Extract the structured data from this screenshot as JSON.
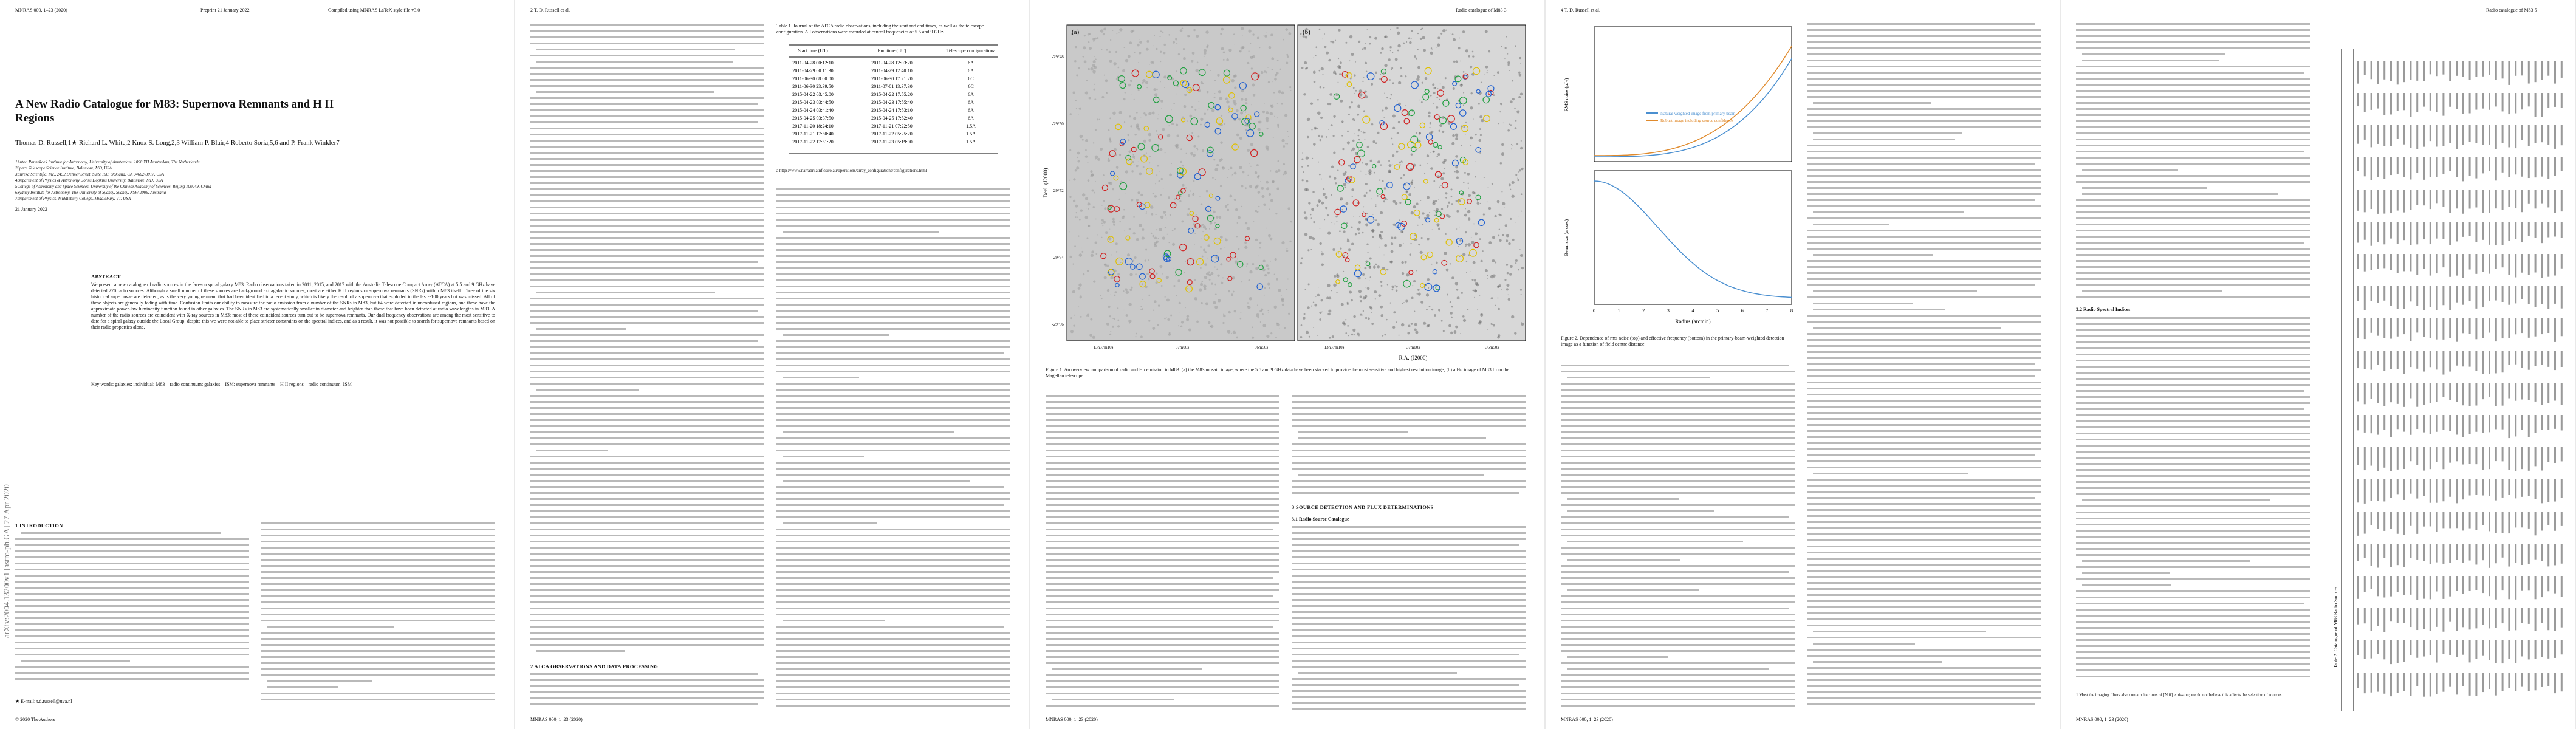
{
  "pages": [
    {
      "header": {
        "left": "MNRAS 000, 1–23 (2020)",
        "center": "Preprint 21 January 2022",
        "right": "Compiled using MNRAS LaTeX style file v3.0"
      },
      "title": "A New Radio Catalogue for M83: Supernova Remnants and H II Regions",
      "authors": "Thomas D. Russell,1★ Richard L. White,2 Knox S. Long,2,3 William P. Blair,4 Roberto Soria,5,6 and P. Frank Winkler7",
      "affiliations": [
        "1Anton Pannekoek Institute for Astronomy, University of Amsterdam, 1098 XH Amsterdam, The Netherlands",
        "2Space Telescope Science Institute, Baltimore, MD, USA",
        "3Eureka Scientific, Inc., 2452 Delmer Street, Suite 100, Oakland, CA 94602-3017, USA",
        "4Department of Physics & Astronomy, Johns Hopkins University, Baltimore, MD, USA",
        "5College of Astronomy and Space Sciences, University of the Chinese Academy of Sciences, Beijing 100049, China",
        "6Sydney Institute for Astronomy, The University of Sydney, Sydney, NSW 2006, Australia",
        "7Department of Physics, Middlebury College, Middlebury, VT, USA"
      ],
      "date": "21 January 2022",
      "stamp": "arXiv:2004.13200v1 [astro-ph.GA] 27 Apr 2020",
      "abstract_heading": "ABSTRACT",
      "abstract": "We present a new catalogue of radio sources in the face-on spiral galaxy M83. Radio observations taken in 2011, 2015, and 2017 with the Australia Telescope Compact Array (ATCA) at 5.5 and 9 GHz have detected 270 radio sources. Although a small number of these sources are background extragalactic sources, most are either H II regions or supernova remnants (SNRs) within M83 itself. Three of the six historical supernovae are detected, as is the very young remnant that had been identified in a recent study, which is likely the result of a supernova that exploded in the last ~100 years but was missed. All of these objects are generally fading with time. Confusion limits our ability to measure the radio emission from a number of the SNRs in M83, but 64 were detected in unconfused regions, and these have the approximate power-law luminosity function found in other galaxies. The SNRs in M83 are systematically smaller in diameter and brighter than those that have been detected at radio wavelengths in M33. A number of the radio sources are coincident with X-ray sources in M83; most of these coincident sources turn out to be supernova remnants. Our dual frequency observations are among the most sensitive to date for a spiral galaxy outside the Local Group; despite this we were not able to place stricter constraints on the spectral indices, and as a result, it was not possible to search for supernova remnants based on their radio properties alone.",
      "keywords": "Key words: galaxies: individual: M83 – radio continuum: galaxies – ISM: supernova remnants – H II regions – radio continuum: ISM",
      "section": "1 INTRODUCTION",
      "footnote": "★ E-mail: t.d.russell@uva.nl",
      "footer": "© 2020 The Authors"
    },
    {
      "header": {
        "left": "2    T. D. Russell et al."
      },
      "table": {
        "caption": "Table 1. Journal of the ATCA radio observations, including the start and end times, as well as the telescope configuration. All observations were recorded at central frequencies of 5.5 and 9 GHz.",
        "columns": [
          "Start time (UT)",
          "End time (UT)",
          "Telescope configurationa"
        ],
        "rows": [
          [
            "2011-04-28 00:12:10",
            "2011-04-28 12:03:20",
            "6A"
          ],
          [
            "2011-04-29 00:11:30",
            "2011-04-29 12:40:10",
            "6A"
          ],
          [
            "2011-06-30 08:00:00",
            "2011-06-30 17:21:20",
            "6C"
          ],
          [
            "2011-06-30 23:39:50",
            "2011-07-01 13:37:30",
            "6C"
          ],
          [
            "2015-04-22 03:45:00",
            "2015-04-22 17:55:20",
            "6A"
          ],
          [
            "2015-04-23 03:44:50",
            "2015-04-23 17:55:40",
            "6A"
          ],
          [
            "2015-04-24 03:41:40",
            "2015-04-24 17:53:10",
            "6A"
          ],
          [
            "2015-04-25 03:37:50",
            "2015-04-25 17:52:40",
            "6A"
          ],
          [
            "2017-11-20 18:24:10",
            "2017-11-21 07:22:50",
            "1.5A"
          ],
          [
            "2017-11-21 17:50:40",
            "2017-11-22 05:25:20",
            "1.5A"
          ],
          [
            "2017-11-22 17:51:20",
            "2017-11-23 05:19:00",
            "1.5A"
          ]
        ]
      },
      "table_note": "a https://www.narrabri.atnf.csiro.au/operations/array_configurations/configurations.html",
      "section": "2 ATCA OBSERVATIONS AND DATA PROCESSING"
    },
    {
      "header": {
        "right": "Radio catalogue of M83    3"
      },
      "figure": {
        "panels": [
          "(a)",
          "(b)"
        ],
        "ylabel": "Decl. (J2000)",
        "xlabel": "R.A. (J2000)",
        "yticks": [
          "-29°48'",
          "-29°50'",
          "-29°52'",
          "-29°54'",
          "-29°56'"
        ],
        "xticks": [
          "13h37m10s",
          "37m00s",
          "36m50s"
        ]
      },
      "caption": "Figure 1. An overview comparison of radio and Hα emission in M83. (a) the M83 mosaic image, where the 5.5 and 9 GHz data have been stacked to provide the most sensitive and highest resolution image; (b) a Hα image of M83 from the Magellan telescope.",
      "section": "3 SOURCE DETECTION AND FLUX DETERMINATIONS",
      "subsection": "3.1 Radio Source Catalogue"
    },
    {
      "header": {
        "left": "4    T. D. Russell et al."
      },
      "figure": {
        "ylabel_top": "RMS noise (µJy)",
        "ylabel_bottom": "Beam size (arcsec)",
        "xlabel": "Radius (arcmin)",
        "legend": [
          "Natural weighted image from primary beam",
          "Robust image including source confidence"
        ],
        "xticks": [
          "0",
          "1",
          "2",
          "3",
          "4",
          "5",
          "6",
          "7",
          "8"
        ]
      },
      "caption": "Figure 2. Dependence of rms noise (top) and effective frequency (bottom) in the primary-beam-weighted detection image as a function of field centre distance."
    },
    {
      "header": {
        "right": "Radio catalogue of M83    5"
      },
      "subsection": "3.2 Radio Spectral Indices",
      "table_caption": "Table 2. Catalogue of M83 Radio Sources",
      "footnote": "1 Most the imaging filters also contain fractions of [N ii] emission; we do not believe this affects the selection of sources."
    }
  ],
  "footer": "MNRAS 000, 1–23 (2020)"
}
